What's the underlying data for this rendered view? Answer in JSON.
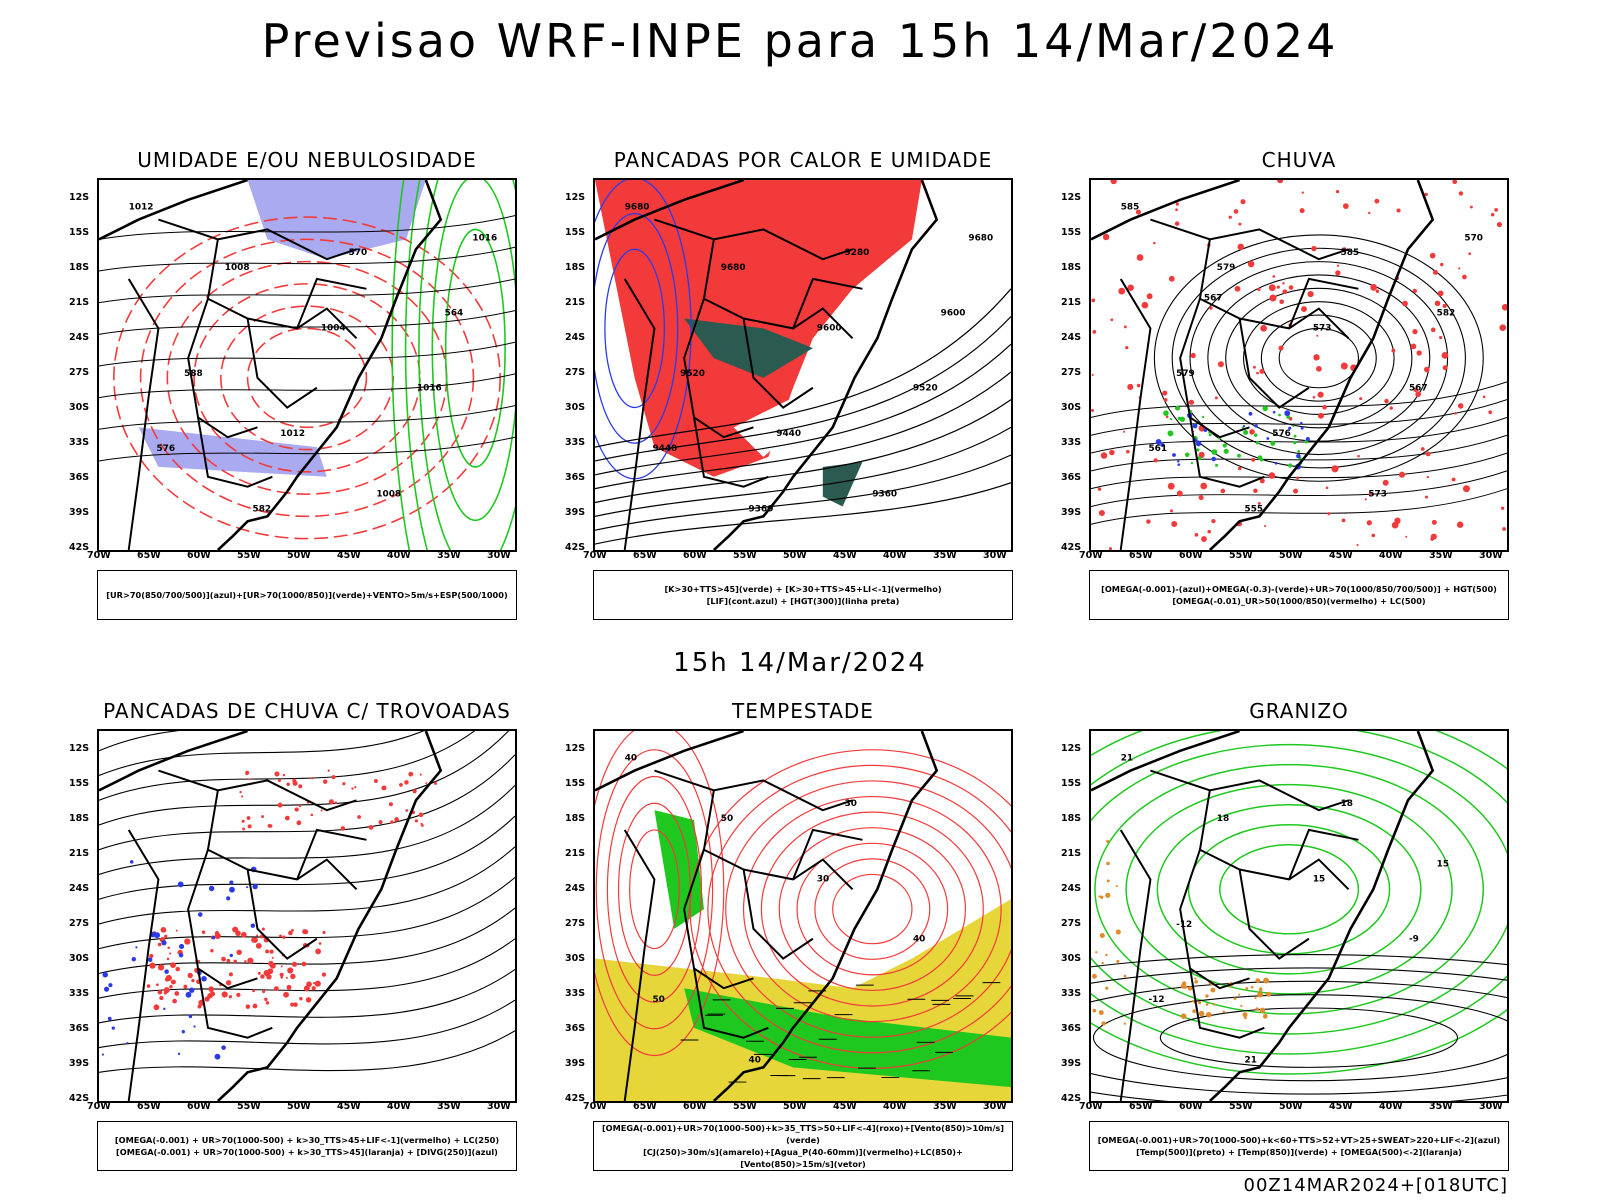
{
  "main_title": "Previsao WRF-INPE  para 15h 14/Mar/2024",
  "mid_title": "15h 14/Mar/2024",
  "footer": "00Z14MAR2024+[018UTC]",
  "lat_ticks": [
    "12S",
    "15S",
    "18S",
    "21S",
    "24S",
    "27S",
    "30S",
    "33S",
    "36S",
    "39S",
    "42S"
  ],
  "lon_ticks": [
    "70W",
    "65W",
    "60W",
    "55W",
    "50W",
    "45W",
    "40W",
    "35W",
    "30W"
  ],
  "panels": [
    {
      "title": "UMIDADE E/OU NEBULOSIDADE",
      "legend": [
        "[UR>70(850/700/500)](azul)+[UR>70(1000/850)](verde)+VENTO>5m/s+ESP(500/1000)"
      ],
      "labels": [
        "1012",
        "1008",
        "1004",
        "1016",
        "576",
        "582",
        "570",
        "564",
        "588",
        "1012",
        "1008",
        "1016"
      ]
    },
    {
      "title": "PANCADAS POR CALOR E UMIDADE",
      "legend": [
        "[K>30+TTS>45](verde)  +  [K>30+TTS>45+LI<-1](vermelho)",
        "[LIF](cont.azul)  +  [HGT(300)](linha preta)"
      ],
      "labels": [
        "9680",
        "9680",
        "9600",
        "9520",
        "9440",
        "9360",
        "9280",
        "9600",
        "9520",
        "9440",
        "9360",
        "9680"
      ]
    },
    {
      "title": "CHUVA",
      "legend": [
        "[OMEGA(-0.001)-(azul)+OMEGA(-0.3)-(verde)+UR>70(1000/850/700/500)]  +  HGT(500)",
        "[OMEGA(-0.01)_UR>50(1000/850)(vermelho)  +  LC(500)"
      ],
      "labels": [
        "585",
        "579",
        "573",
        "567",
        "561",
        "555",
        "585",
        "582",
        "579",
        "576",
        "573",
        "570",
        "567"
      ]
    },
    {
      "title": "PANCADAS DE CHUVA C/ TROVOADAS",
      "legend": [
        "[OMEGA(-0.001) + UR>70(1000-500) + k>30_TTS>45+LIF<-1](vermelho) + LC(250)",
        "[OMEGA(-0.001) + UR>70(1000-500) + k>30_TTS>45](laranja) + [DIVG(250)](azul)"
      ],
      "labels": []
    },
    {
      "title": "TEMPESTADE",
      "legend": [
        "[OMEGA(-0.001)+UR>70(1000-500)+k>35_TTS>50+LIF<-4](roxo)+[Vento(850)>10m/s](verde)",
        "[CJ(250)>30m/s](amarelo)+[Agua_P(40-60mm)](vermelho)+LC(850)+[Vento(850)>15m/s](vetor)"
      ],
      "labels": [
        "40",
        "50",
        "30",
        "40",
        "50",
        "40",
        "30"
      ]
    },
    {
      "title": "GRANIZO",
      "legend": [
        "[OMEGA(-0.001)+UR>70(1000-500)+k<60+TTS>52+VT>25+SWEAT>220+LIF<-2](azul)",
        "[Temp(500)](preto) + [Temp(850)](verde) + [OMEGA(500)<-2](laranja)"
      ],
      "labels": [
        "21",
        "18",
        "15",
        "-9",
        "-12",
        "21",
        "18",
        "15",
        "-12"
      ]
    }
  ],
  "colors": {
    "red": "#f23a3a",
    "green": "#1ec81e",
    "blue": "#2a3ae8",
    "lavender": "#aaaaf0",
    "darkteal": "#2a5a50",
    "yellow": "#e6d63a",
    "orange": "#e08a2a"
  }
}
